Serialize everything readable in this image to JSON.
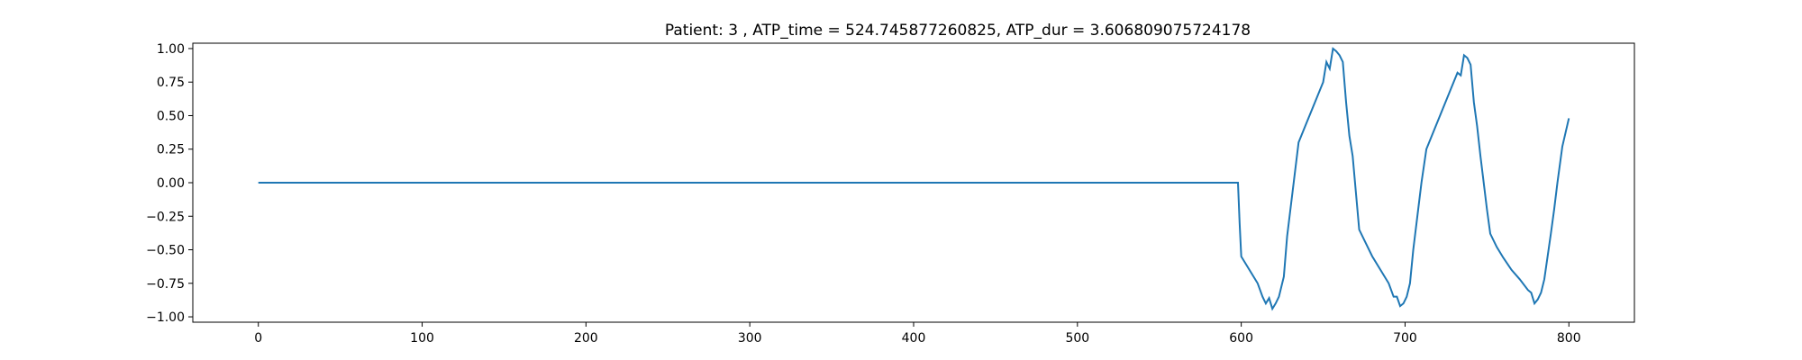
{
  "chart_data": {
    "type": "line",
    "title": "Patient: 3 , ATP_time = 524.745877260825, ATP_dur = 3.606809075724178",
    "xlabel": "",
    "ylabel": "",
    "xlim": [
      -40,
      840
    ],
    "ylim": [
      -1.04,
      1.04
    ],
    "x_ticks": [
      0,
      100,
      200,
      300,
      400,
      500,
      600,
      700,
      800
    ],
    "x_tick_labels": [
      "0",
      "100",
      "200",
      "300",
      "400",
      "500",
      "600",
      "700",
      "800"
    ],
    "y_ticks": [
      1.0,
      0.75,
      0.5,
      0.25,
      0.0,
      -0.25,
      -0.5,
      -0.75,
      -1.0
    ],
    "y_tick_labels": [
      "1.00",
      "0.75",
      "0.50",
      "0.25",
      "0.00",
      "−0.25",
      "−0.50",
      "−0.75",
      "−1.00"
    ],
    "grid": false,
    "legend": "none",
    "series": [
      {
        "color": "#1f77b4",
        "x": [
          0,
          100,
          200,
          300,
          400,
          500,
          598,
          599,
          600,
          605,
          610,
          613,
          615,
          617,
          619,
          621,
          623,
          626,
          628,
          630,
          632,
          635,
          640,
          645,
          650,
          652,
          654,
          656,
          658,
          660,
          662,
          664,
          666,
          668,
          672,
          676,
          680,
          685,
          690,
          693,
          695,
          697,
          699,
          701,
          703,
          705,
          707,
          710,
          713,
          718,
          723,
          728,
          732,
          734,
          736,
          738,
          740,
          742,
          744,
          746,
          748,
          750,
          752,
          756,
          760,
          765,
          770,
          775,
          777,
          779,
          781,
          783,
          785,
          787,
          789,
          791,
          793,
          796,
          800
        ],
        "y": [
          0,
          0,
          0,
          0,
          0,
          0,
          0,
          -0.3,
          -0.55,
          -0.65,
          -0.75,
          -0.85,
          -0.9,
          -0.86,
          -0.94,
          -0.9,
          -0.85,
          -0.7,
          -0.4,
          -0.2,
          0.0,
          0.3,
          0.45,
          0.6,
          0.75,
          0.9,
          0.85,
          1.0,
          0.98,
          0.95,
          0.9,
          0.6,
          0.35,
          0.2,
          -0.35,
          -0.45,
          -0.55,
          -0.65,
          -0.75,
          -0.85,
          -0.85,
          -0.92,
          -0.9,
          -0.85,
          -0.75,
          -0.5,
          -0.3,
          0.0,
          0.25,
          0.4,
          0.55,
          0.7,
          0.82,
          0.8,
          0.95,
          0.93,
          0.88,
          0.6,
          0.42,
          0.2,
          0.0,
          -0.2,
          -0.38,
          -0.48,
          -0.56,
          -0.65,
          -0.72,
          -0.8,
          -0.82,
          -0.9,
          -0.87,
          -0.82,
          -0.72,
          -0.55,
          -0.38,
          -0.2,
          0.0,
          0.27,
          0.48
        ]
      }
    ]
  }
}
